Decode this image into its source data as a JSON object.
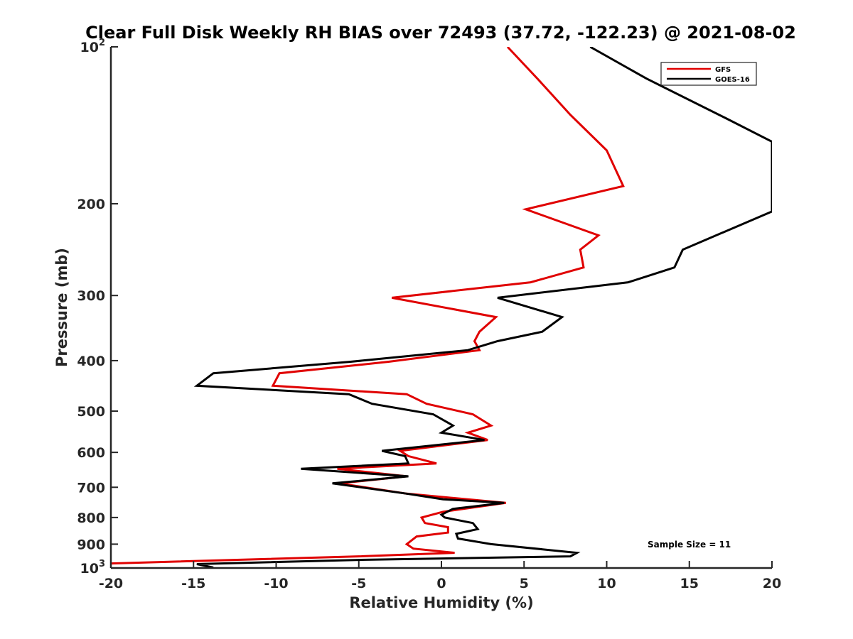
{
  "chart_data": {
    "type": "line",
    "title": "Clear Full Disk Weekly RH BIAS over 72493 (37.72, -122.23) @ 2021-08-02",
    "xlabel": "Relative Humidity (%)",
    "ylabel": "Pressure (mb)",
    "xlim": [
      -20,
      20
    ],
    "ylim": [
      100,
      1000
    ],
    "y_scale": "log",
    "y_reversed": true,
    "x_ticks": [
      -20,
      -15,
      -10,
      -5,
      0,
      5,
      10,
      15,
      20
    ],
    "x_tick_labels": [
      "-20",
      "-15",
      "-10",
      "-5",
      "0",
      "5",
      "10",
      "15",
      "20"
    ],
    "y_ticks": [
      {
        "value": 100,
        "base": "10",
        "exp": "2"
      },
      {
        "value": 200,
        "label": "200"
      },
      {
        "value": 300,
        "label": "300"
      },
      {
        "value": 400,
        "label": "400"
      },
      {
        "value": 500,
        "label": "500"
      },
      {
        "value": 600,
        "label": "600"
      },
      {
        "value": 700,
        "label": "700"
      },
      {
        "value": 800,
        "label": "800"
      },
      {
        "value": 900,
        "label": "900"
      },
      {
        "value": 1000,
        "base": "10",
        "exp": "3"
      }
    ],
    "grid": false,
    "legend_position": "top-right",
    "annotation": "Sample Size = 11",
    "series": [
      {
        "name": "GFS",
        "color": "#e00000",
        "points": [
          [
            4.0,
            100
          ],
          [
            5.8,
            115
          ],
          [
            7.8,
            135
          ],
          [
            10.0,
            158
          ],
          [
            11.0,
            185
          ],
          [
            5.1,
            205
          ],
          [
            9.5,
            230
          ],
          [
            8.4,
            245
          ],
          [
            8.6,
            265
          ],
          [
            5.4,
            283
          ],
          [
            -3.0,
            303
          ],
          [
            3.3,
            330
          ],
          [
            2.3,
            352
          ],
          [
            2.0,
            367
          ],
          [
            2.3,
            382
          ],
          [
            -3.2,
            402
          ],
          [
            -9.8,
            423
          ],
          [
            -10.2,
            447
          ],
          [
            -2.1,
            464
          ],
          [
            -0.9,
            484
          ],
          [
            1.9,
            507
          ],
          [
            3.0,
            533
          ],
          [
            1.6,
            550
          ],
          [
            2.8,
            568
          ],
          [
            -2.5,
            596
          ],
          [
            -2.0,
            610
          ],
          [
            -0.3,
            630
          ],
          [
            -6.3,
            645
          ],
          [
            -2.1,
            667
          ],
          [
            -6.2,
            688
          ],
          [
            -2.1,
            720
          ],
          [
            3.9,
            750
          ],
          [
            0.1,
            780
          ],
          [
            -1.2,
            800
          ],
          [
            -1.0,
            820
          ],
          [
            0.4,
            835
          ],
          [
            0.4,
            855
          ],
          [
            -1.5,
            870
          ],
          [
            -2.1,
            900
          ],
          [
            -1.7,
            918
          ],
          [
            0.8,
            935
          ],
          [
            -5.0,
            950
          ],
          [
            -20.0,
            980
          ]
        ]
      },
      {
        "name": "GOES-16",
        "color": "#000000",
        "points": [
          [
            9.0,
            100
          ],
          [
            12.4,
            115
          ],
          [
            17.2,
            137
          ],
          [
            20.0,
            152
          ],
          [
            20.0,
            207
          ],
          [
            14.6,
            245
          ],
          [
            14.1,
            265
          ],
          [
            11.3,
            283
          ],
          [
            3.4,
            303
          ],
          [
            7.3,
            330
          ],
          [
            6.1,
            352
          ],
          [
            3.4,
            367
          ],
          [
            1.6,
            382
          ],
          [
            -5.5,
            402
          ],
          [
            -13.8,
            423
          ],
          [
            -14.8,
            447
          ],
          [
            -5.6,
            464
          ],
          [
            -4.2,
            484
          ],
          [
            -0.5,
            507
          ],
          [
            0.7,
            533
          ],
          [
            0.0,
            550
          ],
          [
            2.6,
            568
          ],
          [
            -3.6,
            596
          ],
          [
            -2.2,
            610
          ],
          [
            -2.0,
            630
          ],
          [
            -8.5,
            645
          ],
          [
            -2.0,
            667
          ],
          [
            -6.6,
            688
          ],
          [
            -2.1,
            720
          ],
          [
            0.1,
            738
          ],
          [
            3.8,
            750
          ],
          [
            0.7,
            770
          ],
          [
            0.0,
            790
          ],
          [
            0.2,
            800
          ],
          [
            1.9,
            820
          ],
          [
            2.2,
            842
          ],
          [
            0.9,
            860
          ],
          [
            1.0,
            878
          ],
          [
            3.0,
            900
          ],
          [
            8.2,
            935
          ],
          [
            7.8,
            950
          ],
          [
            -5.0,
            965
          ],
          [
            -14.8,
            983
          ],
          [
            -13.8,
            998
          ]
        ]
      }
    ]
  }
}
